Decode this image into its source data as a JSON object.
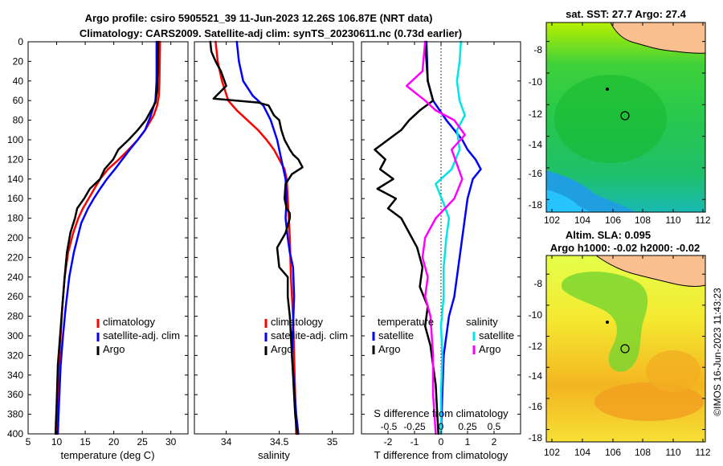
{
  "title": {
    "line1": "Argo profile: csiro 5905521_39 11-Jun-2023 12.26S 106.87E (NRT data)",
    "line2": "Climatology: CARS2009. Satellite-adj clim: synTS_20230611.nc (0.73d earlier)"
  },
  "colors": {
    "climatology": "#ff0000",
    "satellite": "#0000ff",
    "argo": "#000000",
    "salinity_diff_sat": "#00e5e5",
    "salinity_diff_argo": "#ff00ff",
    "land": "#f9bf8f"
  },
  "chart_data": [
    {
      "id": "temperature",
      "type": "line",
      "xlabel": "temperature (deg C)",
      "ylabel": "",
      "xlim": [
        5,
        33
      ],
      "ylim": [
        400,
        0
      ],
      "xticks": [
        5,
        10,
        15,
        20,
        25,
        30
      ],
      "yticks": [
        0,
        20,
        40,
        60,
        80,
        100,
        120,
        140,
        160,
        180,
        200,
        220,
        240,
        260,
        280,
        300,
        320,
        340,
        360,
        380,
        400
      ],
      "legend": [
        "climatology",
        "satellite-adj. clim",
        "Argo"
      ],
      "series": [
        {
          "name": "climatology",
          "color_key": "climatology",
          "x": [
            28.1,
            28.0,
            27.9,
            27.6,
            27.0,
            25.5,
            24.2,
            22.6,
            20.9,
            19.0,
            17.6,
            16.6,
            15.6,
            14.6,
            13.8,
            12.9,
            12.0,
            11.4,
            11.0,
            10.7,
            10.4,
            10.2,
            10.0
          ],
          "y": [
            0,
            40,
            55,
            65,
            75,
            90,
            100,
            110,
            120,
            130,
            140,
            150,
            160,
            170,
            180,
            195,
            215,
            240,
            270,
            300,
            330,
            370,
            400
          ]
        },
        {
          "name": "satellite-adj. clim",
          "color_key": "satellite",
          "x": [
            27.5,
            27.5,
            27.3,
            26.5,
            25.5,
            24.2,
            22.8,
            21.5,
            20.2,
            18.8,
            17.6,
            16.5,
            15.5,
            14.3,
            13.0,
            12.2,
            11.6,
            11.1,
            10.7,
            10.4,
            10.2
          ],
          "y": [
            0,
            40,
            60,
            75,
            90,
            100,
            110,
            120,
            130,
            140,
            150,
            160,
            170,
            185,
            215,
            240,
            270,
            300,
            330,
            370,
            400
          ]
        },
        {
          "name": "Argo",
          "color_key": "argo",
          "x": [
            27.8,
            27.7,
            27.6,
            27.3,
            25.6,
            24.2,
            22.6,
            20.8,
            19.9,
            18.4,
            17.6,
            15.8,
            14.8,
            13.6,
            13.2,
            12.4,
            11.8,
            11.4,
            11.0,
            10.6,
            10.2,
            10.0,
            9.8
          ],
          "y": [
            0,
            30,
            50,
            62,
            80,
            90,
            100,
            110,
            120,
            130,
            140,
            150,
            160,
            170,
            180,
            195,
            215,
            240,
            270,
            300,
            330,
            370,
            400
          ]
        }
      ]
    },
    {
      "id": "salinity",
      "type": "line",
      "xlabel": "salinity",
      "ylabel": "",
      "xlim": [
        33.7,
        35.2
      ],
      "ylim": [
        400,
        0
      ],
      "xticks": [
        34,
        34.5,
        35
      ],
      "legend": [
        "climatology",
        "satellite-adj. clim",
        "Argo"
      ],
      "series": [
        {
          "name": "climatology",
          "color_key": "climatology",
          "x": [
            33.9,
            33.92,
            33.96,
            34.02,
            34.1,
            34.2,
            34.3,
            34.38,
            34.45,
            34.5,
            34.55,
            34.57,
            34.58,
            34.6,
            34.61,
            34.63,
            34.64,
            34.65,
            34.66
          ],
          "y": [
            0,
            20,
            40,
            60,
            70,
            80,
            90,
            100,
            110,
            120,
            130,
            140,
            160,
            200,
            240,
            280,
            320,
            360,
            400
          ]
        },
        {
          "name": "satellite-adj. clim",
          "color_key": "satellite",
          "x": [
            34.1,
            34.12,
            34.16,
            34.25,
            34.35,
            34.42,
            34.48,
            34.52,
            34.56,
            34.57,
            34.56,
            34.58,
            34.6,
            34.63,
            34.64,
            34.63,
            34.62,
            34.64,
            34.66,
            34.68
          ],
          "y": [
            0,
            20,
            40,
            55,
            65,
            80,
            100,
            120,
            140,
            160,
            180,
            200,
            215,
            230,
            260,
            290,
            320,
            350,
            380,
            400
          ]
        },
        {
          "name": "Argo",
          "color_key": "argo",
          "x": [
            33.85,
            33.86,
            33.9,
            33.95,
            34.0,
            33.88,
            34.3,
            34.4,
            34.45,
            34.5,
            34.52,
            34.55,
            34.6,
            34.63,
            34.68,
            34.72,
            34.62,
            34.56,
            34.55,
            34.57,
            34.6,
            34.6,
            34.56,
            34.48,
            34.5,
            34.58,
            34.58,
            34.6,
            34.61,
            34.62,
            34.63,
            34.64,
            34.65,
            34.67
          ],
          "y": [
            0,
            10,
            20,
            30,
            45,
            58,
            62,
            65,
            75,
            80,
            90,
            100,
            110,
            115,
            120,
            128,
            135,
            145,
            160,
            170,
            175,
            180,
            195,
            210,
            230,
            240,
            260,
            280,
            300,
            320,
            340,
            360,
            380,
            400
          ]
        }
      ]
    },
    {
      "id": "differences",
      "type": "line",
      "xlabel": "T difference from climatology",
      "xlabel_top": "S difference from climatology",
      "xlim": [
        -3,
        3
      ],
      "ylim": [
        400,
        0
      ],
      "xticks": [
        -2,
        -1,
        0,
        1,
        2
      ],
      "s_xticks": [
        "-0.5",
        "-0.25",
        "0",
        "0.25",
        "0.5"
      ],
      "legend_left_title": "temperature",
      "legend_right_title": "salinity",
      "legend_left": [
        "satellite",
        "Argo"
      ],
      "legend_right": [
        "satellite",
        "Argo"
      ],
      "series": [
        {
          "name": "temperature satellite",
          "color_key": "satellite",
          "x": [
            -0.55,
            -0.5,
            -0.3,
            0.2,
            0.5,
            0.8,
            1.0,
            1.3,
            1.5,
            1.2,
            1.0,
            0.9,
            0.8,
            0.7,
            0.6,
            0.5,
            0.3,
            0.1,
            0.05,
            0
          ],
          "y": [
            0,
            40,
            60,
            80,
            90,
            100,
            110,
            120,
            130,
            140,
            160,
            180,
            200,
            220,
            240,
            260,
            280,
            320,
            360,
            400
          ]
        },
        {
          "name": "temperature Argo",
          "color_key": "argo",
          "x": [
            -0.6,
            -0.55,
            -0.5,
            -0.3,
            -0.8,
            -1.2,
            -1.5,
            -2.0,
            -2.5,
            -2.1,
            -2.3,
            -1.8,
            -2.4,
            -1.7,
            -2.0,
            -1.5,
            -1.2,
            -0.9,
            -0.7,
            -0.8,
            -0.5,
            -0.6,
            -0.4,
            -0.3,
            -0.2,
            -0.15,
            -0.1
          ],
          "y": [
            0,
            20,
            40,
            60,
            70,
            80,
            90,
            100,
            110,
            120,
            130,
            140,
            150,
            160,
            170,
            180,
            195,
            210,
            230,
            250,
            270,
            290,
            310,
            330,
            350,
            375,
            400
          ]
        },
        {
          "name": "salinity satellite",
          "color_key": "salinity_diff_sat",
          "x": [
            0.75,
            0.7,
            0.6,
            0.7,
            0.9,
            0.6,
            0.7,
            0.4,
            -0.2,
            0.1,
            0.3,
            0.2,
            0.1,
            0.1,
            0,
            0.05,
            0,
            0
          ],
          "y": [
            0,
            20,
            40,
            60,
            75,
            90,
            110,
            130,
            145,
            165,
            180,
            200,
            230,
            260,
            290,
            320,
            360,
            400
          ]
        },
        {
          "name": "salinity Argo",
          "color_key": "salinity_diff_argo",
          "x": [
            -0.6,
            -0.7,
            -1.3,
            -0.6,
            -0.2,
            0.5,
            0.9,
            0.4,
            0.6,
            0.8,
            0.5,
            -0.2,
            -0.6,
            -0.7,
            -0.5,
            -0.6,
            -0.4,
            -0.3,
            -0.3,
            -0.2
          ],
          "y": [
            0,
            30,
            45,
            60,
            70,
            80,
            95,
            110,
            125,
            140,
            160,
            180,
            200,
            220,
            240,
            260,
            280,
            320,
            360,
            400
          ]
        }
      ]
    }
  ],
  "maps": {
    "sst": {
      "title": "sat. SST: 27.7 Argo: 27.4",
      "xticks": [
        "102",
        "104",
        "106",
        "108",
        "110",
        "112"
      ],
      "yticks": [
        "-8",
        "-10",
        "-12",
        "-14",
        "-16",
        "-18"
      ]
    },
    "sla": {
      "title1": "Altim. SLA: 0.095",
      "title2": "Argo h1000: -0.02 h2000: -0.02",
      "xticks": [
        "102",
        "104",
        "106",
        "108",
        "110",
        "112"
      ],
      "yticks": [
        "-8",
        "-10",
        "-12",
        "-14",
        "-16",
        "-18"
      ]
    }
  },
  "footer": "©IMOS 16-Jun-2023 11:43:23"
}
